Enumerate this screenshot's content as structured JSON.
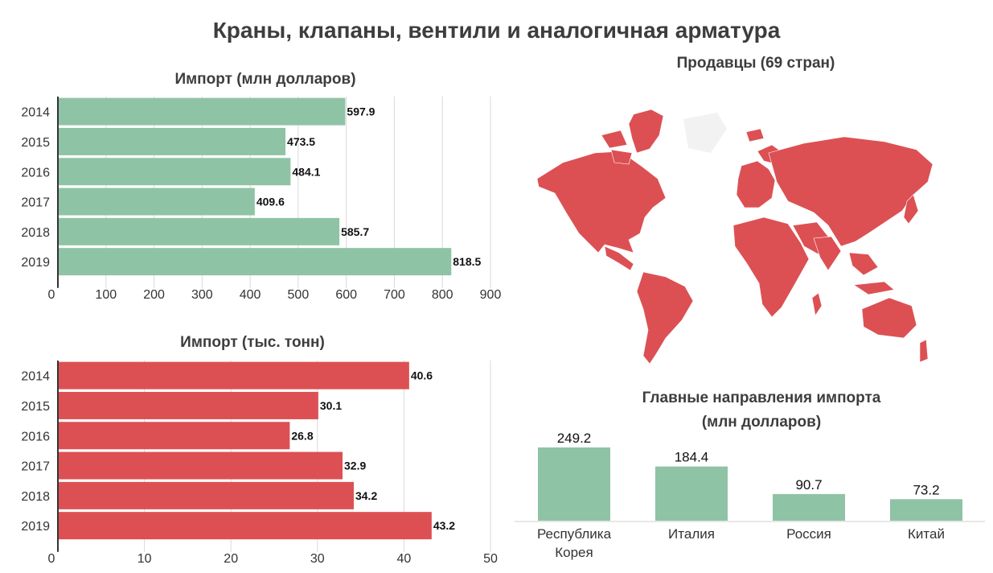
{
  "title": "Краны, клапаны, вентили и аналогичная арматура",
  "colors": {
    "green": "#8fc3a5",
    "red": "#dc5053",
    "grid": "#d9d9d9",
    "axis": "#333333"
  },
  "map": {
    "title": "Продавцы (69 стран)"
  },
  "chart_data": [
    {
      "type": "bar",
      "orientation": "horizontal",
      "title": "Импорт (млн долларов)",
      "categories": [
        "2014",
        "2015",
        "2016",
        "2017",
        "2018",
        "2019"
      ],
      "values": [
        597.9,
        473.5,
        484.1,
        409.6,
        585.7,
        818.5
      ],
      "value_labels": [
        "597.9",
        "473.5",
        "484.1",
        "409.6",
        "585.7",
        "818.5"
      ],
      "xlim": [
        0,
        900
      ],
      "ticks": [
        "0",
        "100",
        "200",
        "300",
        "400",
        "500",
        "600",
        "700",
        "800",
        "900"
      ],
      "grid": true,
      "color": "#8fc3a5"
    },
    {
      "type": "bar",
      "orientation": "horizontal",
      "title": "Импорт (тыс. тонн)",
      "categories": [
        "2014",
        "2015",
        "2016",
        "2017",
        "2018",
        "2019"
      ],
      "values": [
        40.6,
        30.1,
        26.8,
        32.9,
        34.2,
        43.2
      ],
      "value_labels": [
        "40.6",
        "30.1",
        "26.8",
        "32.9",
        "34.2",
        "43.2"
      ],
      "xlim": [
        0,
        50
      ],
      "ticks": [
        "0",
        "10",
        "20",
        "30",
        "40",
        "50"
      ],
      "grid": true,
      "color": "#dc5053"
    },
    {
      "type": "bar",
      "orientation": "vertical",
      "title": "Главные направления импорта",
      "subtitle": "(млн долларов)",
      "categories": [
        [
          "Республика",
          "Корея"
        ],
        [
          "Италия"
        ],
        [
          "Россия"
        ],
        [
          "Китай"
        ]
      ],
      "values": [
        249.2,
        184.4,
        90.7,
        73.2
      ],
      "value_labels": [
        "249.2",
        "184.4",
        "90.7",
        "73.2"
      ],
      "ylim": [
        0,
        249.2
      ],
      "grid": false,
      "color": "#8fc3a5"
    }
  ]
}
